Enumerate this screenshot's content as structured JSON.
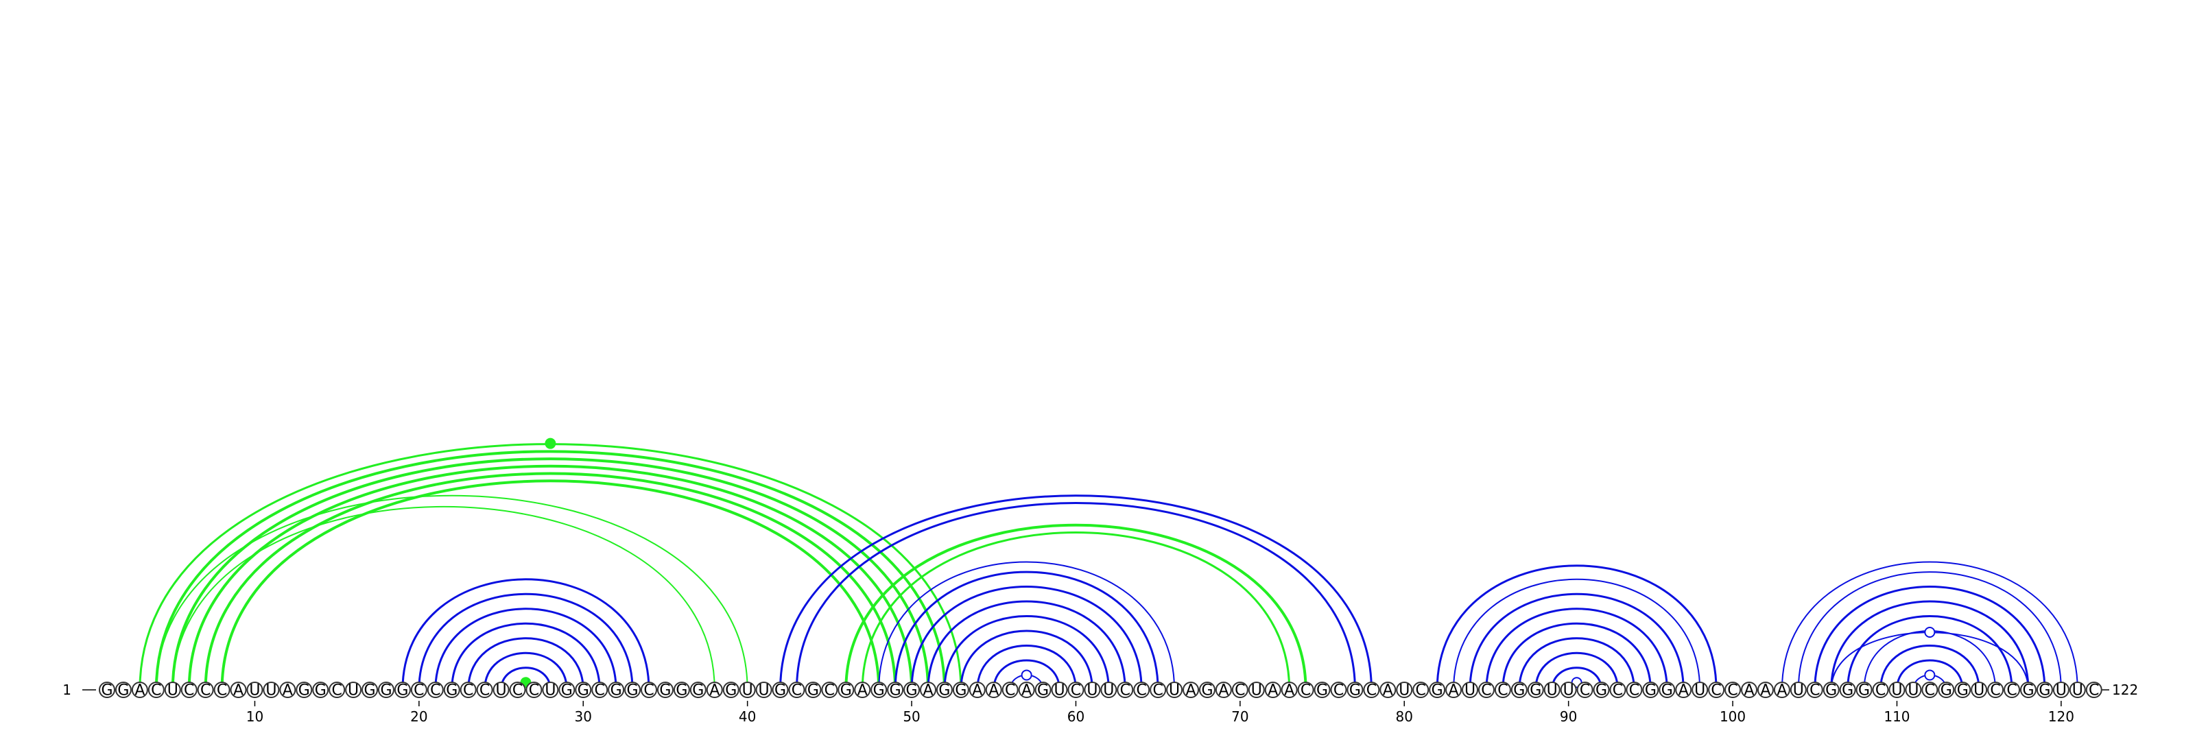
{
  "sequence": "GGACUCCCAUUAGGCUGGGCCGCCUCCUGGCGGCGGGAGUUGCGCGAGGGAGGAACAGUCUUCCCUAGACUAACGCGCAUCGAUCCGGUUCGCCGGAUCCAAAUCGGGCUUCGGUCCGGUUC",
  "start_label": "1",
  "end_label": "122",
  "ticks": [
    "10",
    "20",
    "30",
    "40",
    "50",
    "60",
    "70",
    "80",
    "90",
    "100",
    "110",
    "120"
  ],
  "colors": {
    "green": "#22ee22",
    "blue": "#0a10e0"
  },
  "arcs": [
    {
      "i": 19,
      "j": 34,
      "c": "blue",
      "w": 3
    },
    {
      "i": 20,
      "j": 33,
      "c": "blue",
      "w": 3
    },
    {
      "i": 21,
      "j": 32,
      "c": "blue",
      "w": 3
    },
    {
      "i": 22,
      "j": 31,
      "c": "blue",
      "w": 3
    },
    {
      "i": 23,
      "j": 30,
      "c": "blue",
      "w": 3
    },
    {
      "i": 24,
      "j": 29,
      "c": "blue",
      "w": 3
    },
    {
      "i": 25,
      "j": 28,
      "c": "blue",
      "w": 3
    },
    {
      "i": 26,
      "j": 27,
      "c": "green",
      "w": 3,
      "mark": "dot"
    },
    {
      "i": 3,
      "j": 53,
      "c": "green",
      "w": 3,
      "mark": "dot"
    },
    {
      "i": 4,
      "j": 52,
      "c": "green",
      "w": 4
    },
    {
      "i": 5,
      "j": 51,
      "c": "green",
      "w": 4
    },
    {
      "i": 6,
      "j": 50,
      "c": "green",
      "w": 4
    },
    {
      "i": 7,
      "j": 49,
      "c": "green",
      "w": 4
    },
    {
      "i": 8,
      "j": 48,
      "c": "green",
      "w": 4
    },
    {
      "i": 4,
      "j": 40,
      "c": "green",
      "w": 2
    },
    {
      "i": 5,
      "j": 38,
      "c": "green",
      "w": 2
    },
    {
      "i": 42,
      "j": 78,
      "c": "blue",
      "w": 3
    },
    {
      "i": 43,
      "j": 77,
      "c": "blue",
      "w": 3
    },
    {
      "i": 46,
      "j": 74,
      "c": "green",
      "w": 4
    },
    {
      "i": 47,
      "j": 73,
      "c": "green",
      "w": 3
    },
    {
      "i": 48,
      "j": 66,
      "c": "blue",
      "w": 2
    },
    {
      "i": 49,
      "j": 65,
      "c": "blue",
      "w": 3
    },
    {
      "i": 50,
      "j": 64,
      "c": "blue",
      "w": 3
    },
    {
      "i": 51,
      "j": 63,
      "c": "blue",
      "w": 3
    },
    {
      "i": 52,
      "j": 62,
      "c": "blue",
      "w": 3
    },
    {
      "i": 53,
      "j": 61,
      "c": "blue",
      "w": 3
    },
    {
      "i": 54,
      "j": 60,
      "c": "blue",
      "w": 3
    },
    {
      "i": 55,
      "j": 59,
      "c": "blue",
      "w": 3
    },
    {
      "i": 56,
      "j": 58,
      "c": "blue",
      "w": 2,
      "mark": "ring"
    },
    {
      "i": 82,
      "j": 99,
      "c": "blue",
      "w": 3
    },
    {
      "i": 83,
      "j": 98,
      "c": "blue",
      "w": 2
    },
    {
      "i": 84,
      "j": 97,
      "c": "blue",
      "w": 3
    },
    {
      "i": 85,
      "j": 96,
      "c": "blue",
      "w": 3
    },
    {
      "i": 86,
      "j": 95,
      "c": "blue",
      "w": 3
    },
    {
      "i": 87,
      "j": 94,
      "c": "blue",
      "w": 3
    },
    {
      "i": 88,
      "j": 93,
      "c": "blue",
      "w": 3
    },
    {
      "i": 89,
      "j": 92,
      "c": "blue",
      "w": 3
    },
    {
      "i": 90,
      "j": 91,
      "c": "blue",
      "w": 2,
      "mark": "ring"
    },
    {
      "i": 103,
      "j": 121,
      "c": "blue",
      "w": 2
    },
    {
      "i": 104,
      "j": 120,
      "c": "blue",
      "w": 2
    },
    {
      "i": 105,
      "j": 119,
      "c": "blue",
      "w": 3
    },
    {
      "i": 106,
      "j": 118,
      "c": "blue",
      "w": 3
    },
    {
      "i": 107,
      "j": 117,
      "c": "blue",
      "w": 3
    },
    {
      "i": 108,
      "j": 116,
      "c": "blue",
      "w": 2
    },
    {
      "i": 109,
      "j": 115,
      "c": "blue",
      "w": 3
    },
    {
      "i": 110,
      "j": 114,
      "c": "blue",
      "w": 3
    },
    {
      "i": 111,
      "j": 113,
      "c": "blue",
      "w": 2,
      "mark": "ring"
    },
    {
      "i": 106,
      "j": 118,
      "c": "blue",
      "w": 2,
      "mark": "ring",
      "hoff": 84
    }
  ]
}
